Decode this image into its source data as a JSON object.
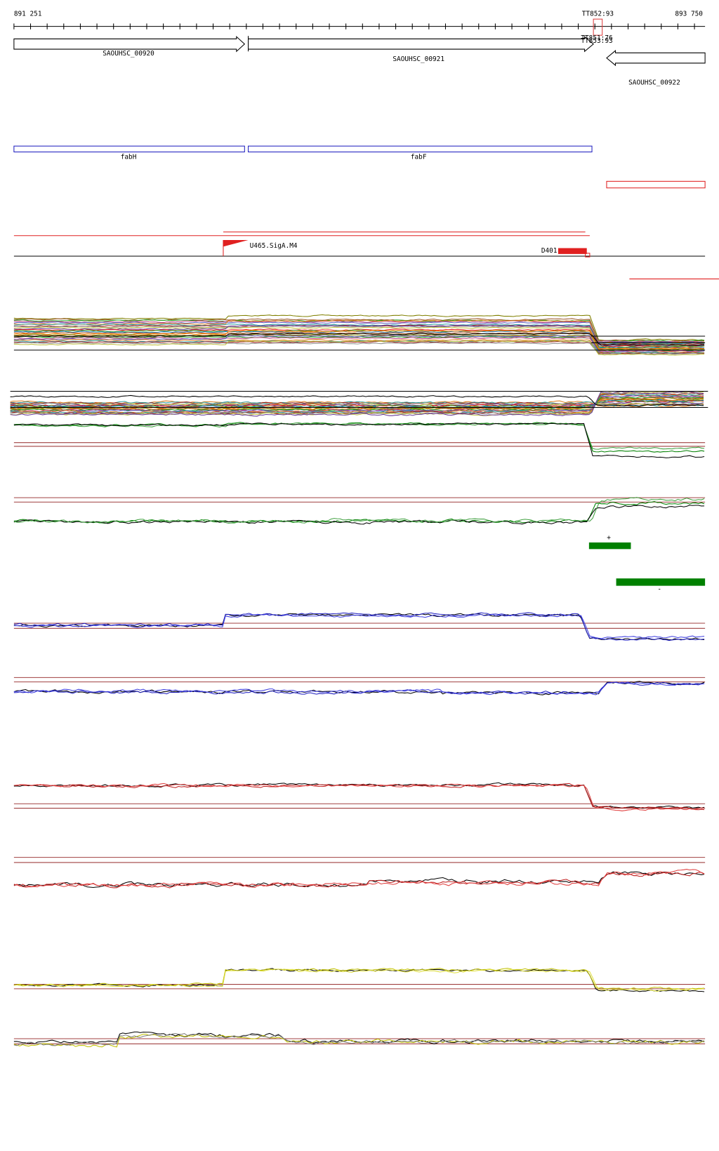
{
  "ruler": {
    "start": "891 251",
    "end": "893 750",
    "marker": "TT852:93",
    "overlap_labels": [
      "TT851:76",
      "TT853:93"
    ]
  },
  "genes": [
    {
      "label": "SAOUHSC_00920"
    },
    {
      "label": "SAOUHSC_00921"
    },
    {
      "label": "SAOUHSC_00922"
    }
  ],
  "annotations": [
    {
      "label": "fabH"
    },
    {
      "label": "fabF"
    }
  ],
  "features": {
    "promoter": "U465.SigA.M4",
    "terminator": "D401"
  },
  "strands": {
    "plus": "+",
    "minus": "-"
  }
}
